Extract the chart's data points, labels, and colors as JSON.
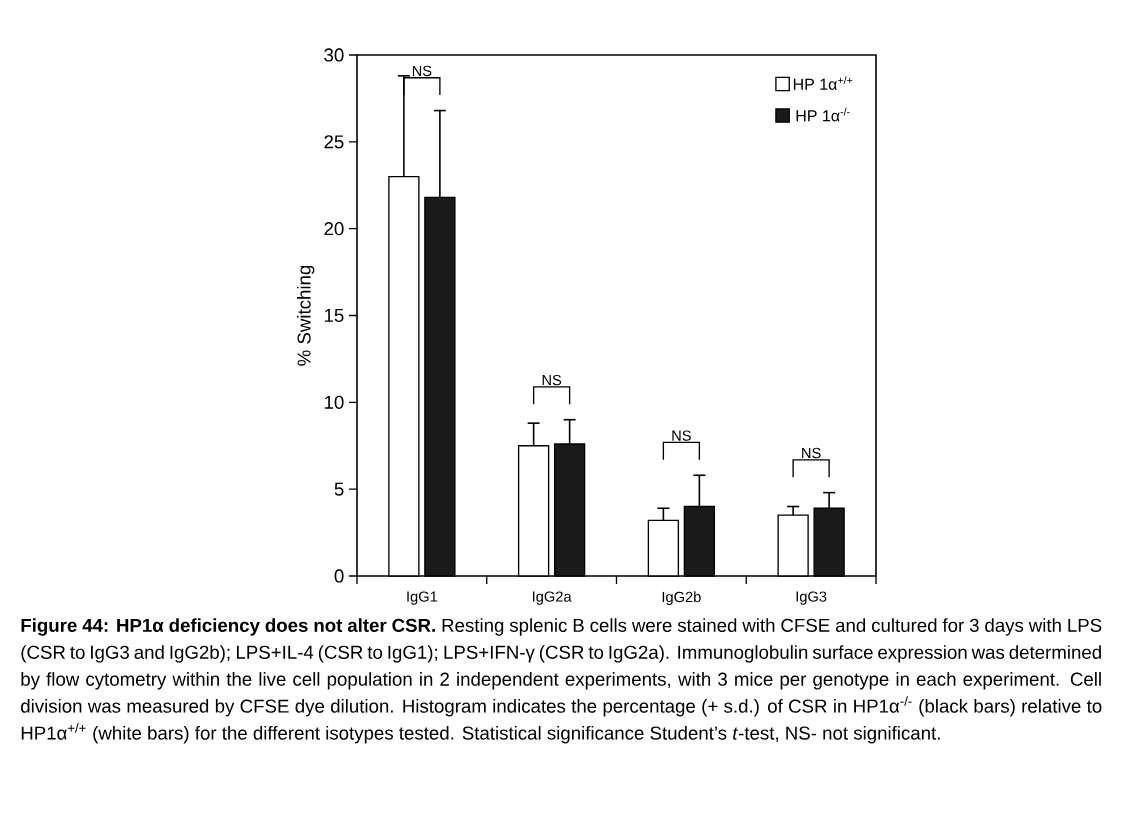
{
  "chart_data": {
    "type": "bar",
    "ylabel": "% Switching",
    "categories": [
      "IgG1",
      "IgG2a",
      "IgG2b",
      "IgG3"
    ],
    "series": [
      {
        "name": "HP 1α$^{+/+}$",
        "color": "#ffffff",
        "values": [
          23,
          7.5,
          3.2,
          3.5
        ],
        "errors": [
          [
            23,
            28.8
          ],
          [
            7.5,
            8.8
          ],
          [
            3.2,
            3.9
          ],
          [
            3.5,
            4.0
          ]
        ]
      },
      {
        "name": "HP 1α$^{-/-}$",
        "color": "#1a1a1a",
        "values": [
          21.8,
          7.6,
          4.0,
          3.9
        ],
        "errors": [
          [
            21.8,
            26.8
          ],
          [
            7.6,
            9.0
          ],
          [
            4.0,
            5.8
          ],
          [
            3.9,
            4.8
          ]
        ]
      }
    ],
    "ylim": [
      0,
      30
    ],
    "yticks": [
      0,
      5,
      10,
      15,
      20,
      25,
      30
    ],
    "legend": "top right",
    "annotations": [
      "NS",
      "NS",
      "NS",
      "NS",
      "**Figure 44: HP1α deficiency does not alter CSR.** Resting splenic B cells were stained with CFSE and cultured for 3 days with LPS (CSR to IgG3 and IgG2b); LPS+IL-4 (CSR to IgG1); LPS+IFN-γ (CSR to IgG2a). Immunoglobulin surface expression was determined by flow cytometry within the live cell population in 2 independent experiments, with 3 mice per genotype in each experiment. Cell division was measured by CFSE dye dilution. Histogram indicates the percentage (+ s.d.) of CSR in HP1α$^{-/-}$ (black bars) relative to HP1α$^{+/+}$ (white bars) for the different isotypes tested. Statistical significance Student’s *t*-test, NS- not significant."
    ]
  }
}
